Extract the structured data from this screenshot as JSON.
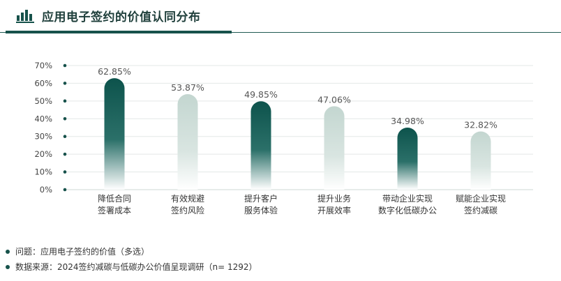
{
  "header": {
    "title": "应用电子签约的价值认同分布",
    "icon": "bar-chart-icon",
    "accent_color": "#17524b"
  },
  "notes": [
    "问题：应用电子签约的价值（多选）",
    "数据来源：2024签约减碳与低碳办公价值呈现调研（n= 1292）"
  ],
  "chart_data": {
    "type": "bar",
    "title": "应用电子签约的价值认同分布",
    "xlabel": "",
    "ylabel": "",
    "ylim": [
      0,
      70
    ],
    "yticks": [
      "0%",
      "10%",
      "20%",
      "30%",
      "40%",
      "50%",
      "60%",
      "70%"
    ],
    "grid": true,
    "categories": [
      [
        "降低合同",
        "签署成本"
      ],
      [
        "有效规避",
        "签约风险"
      ],
      [
        "提升客户",
        "服务体验"
      ],
      [
        "提升业务",
        "开展效率"
      ],
      [
        "带动企业实现",
        "数字化低碳办公"
      ],
      [
        "赋能企业实现",
        "签约减碳"
      ]
    ],
    "values": [
      62.85,
      53.87,
      49.85,
      47.06,
      34.98,
      32.82
    ],
    "value_labels": [
      "62.85%",
      "53.87%",
      "49.85%",
      "47.06%",
      "34.98%",
      "32.82%"
    ],
    "colors": {
      "dark": "#0f5a52",
      "light": "#c7d8d3"
    },
    "bar_color_pattern": [
      "dark",
      "light",
      "dark",
      "light",
      "dark",
      "light"
    ]
  }
}
